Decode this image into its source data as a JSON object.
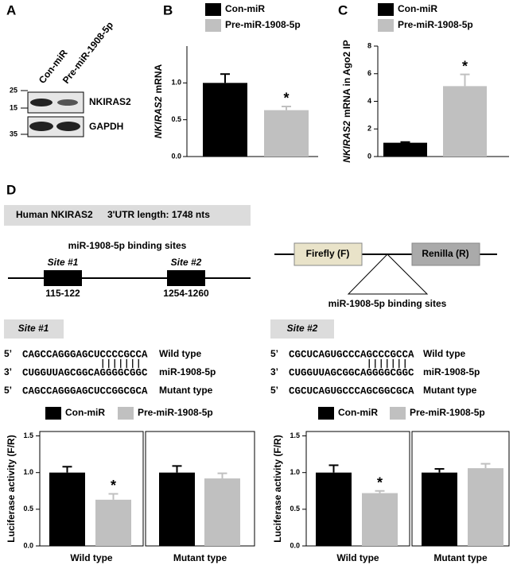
{
  "panel_labels": [
    "A",
    "B",
    "C",
    "D"
  ],
  "blot": {
    "lanes": [
      "Con-miR",
      "Pre-miR-1908-5p"
    ],
    "markers": [
      "25",
      "15",
      "35"
    ],
    "bands": [
      "NKIRAS2",
      "GAPDH"
    ]
  },
  "diagram": {
    "gene": "Human NKIRAS2",
    "utr": "3'UTR length: 1748 nts",
    "sites_title": "miR-1908-5p binding sites",
    "sites": [
      {
        "name": "Site #1",
        "range": "115-122"
      },
      {
        "name": "Site #2",
        "range": "1254-1260"
      }
    ],
    "firefly": "Firefly (F)",
    "renilla": "Renilla (R)",
    "insert": "miR-1908-5p binding sites"
  },
  "sequences": [
    {
      "site": "Site #1",
      "rows": [
        {
          "end": "5’",
          "seq": "CAGCCAGGGAGCUCCCCGCCA",
          "label": "Wild type"
        },
        {
          "end": "3’",
          "seq": "CUGGUUAGCGGCAGGGGCGGC",
          "label": "miR-1908-5p"
        },
        {
          "end": "5’",
          "seq": "CAGCCAGGGAGCUCCGGCGCA",
          "label": "Mutant type"
        }
      ]
    },
    {
      "site": "Site #2",
      "rows": [
        {
          "end": "5’",
          "seq": "CGCUCAGUGCCCAGCCCGCCA",
          "label": "Wild type"
        },
        {
          "end": "3’",
          "seq": "CUGGUUAGCGGCAGGGGCGGC",
          "label": "miR-1908-5p"
        },
        {
          "end": "5’",
          "seq": "CGCUCAGUGCCCAGCGGCGCA",
          "label": "Mutant type"
        }
      ]
    }
  ],
  "chart_data": [
    {
      "type": "bar",
      "ylabel": [
        "NKIRAS2",
        "mRNA"
      ],
      "categories": [
        null
      ],
      "ylim": [
        0,
        1.5
      ],
      "yticks": [
        {
          "value": 0,
          "label": "0.0"
        },
        {
          "value": 0.5,
          "label": "0.5"
        },
        {
          "value": 1,
          "label": "1.0"
        }
      ],
      "series": [
        {
          "name": "Con-miR",
          "color": "#000000",
          "values": [
            1.0
          ],
          "errors": [
            0.12
          ]
        },
        {
          "name": "Pre-miR-1908-5p",
          "color": "#c0c0c0",
          "values": [
            0.63
          ],
          "errors": [
            0.05
          ],
          "annotations": [
            "*"
          ]
        }
      ]
    },
    {
      "type": "bar",
      "ylabel": [
        "NKIRAS2",
        "mRNA in Ago2 IP"
      ],
      "categories": [
        null
      ],
      "ylim": [
        0,
        8
      ],
      "yticks": [
        0,
        2,
        4,
        6,
        8
      ],
      "series": [
        {
          "name": "Con-miR",
          "color": "#000000",
          "values": [
            1.0
          ],
          "errors": [
            0.05
          ]
        },
        {
          "name": "Pre-miR-1908-5p",
          "color": "#c0c0c0",
          "values": [
            5.1
          ],
          "errors": [
            0.85
          ],
          "annotations": [
            "*"
          ]
        }
      ]
    },
    {
      "type": "bar",
      "ylabel": "Luciferase activity (F/R)",
      "categories": [
        "Wild type",
        "Mutant type"
      ],
      "ylim": [
        0,
        1.56
      ],
      "yticks": [
        {
          "value": 0,
          "label": "0.0"
        },
        {
          "value": 0.5,
          "label": "0.5"
        },
        {
          "value": 1,
          "label": "1.0"
        },
        {
          "value": 1.5,
          "label": "1.5"
        }
      ],
      "series": [
        {
          "name": "Con-miR",
          "color": "#000000",
          "values": [
            1.0,
            1.0
          ],
          "errors": [
            0.08,
            0.09
          ]
        },
        {
          "name": "Pre-miR-1908-5p",
          "color": "#c0c0c0",
          "values": [
            0.63,
            0.92
          ],
          "errors": [
            0.08,
            0.07
          ],
          "annotations": [
            "*",
            null
          ]
        }
      ]
    },
    {
      "type": "bar",
      "ylabel": "Luciferase activity (F/R)",
      "categories": [
        "Wild type",
        "Mutant type"
      ],
      "ylim": [
        0,
        1.56
      ],
      "yticks": [
        {
          "value": 0,
          "label": "0.0"
        },
        {
          "value": 0.5,
          "label": "0.5"
        },
        {
          "value": 1,
          "label": "1.0"
        },
        {
          "value": 1.5,
          "label": "1.5"
        }
      ],
      "series": [
        {
          "name": "Con-miR",
          "color": "#000000",
          "values": [
            1.0,
            1.0
          ],
          "errors": [
            0.1,
            0.05
          ]
        },
        {
          "name": "Pre-miR-1908-5p",
          "color": "#c0c0c0",
          "values": [
            0.72,
            1.06
          ],
          "errors": [
            0.03,
            0.06
          ],
          "annotations": [
            "*",
            null
          ]
        }
      ]
    }
  ]
}
